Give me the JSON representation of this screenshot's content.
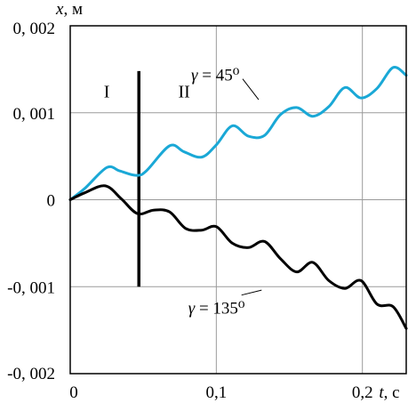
{
  "chart_data": {
    "type": "line",
    "title": "",
    "xlabel": "t, с",
    "ylabel": "x, м",
    "xlim": [
      0,
      0.23
    ],
    "ylim": [
      -0.002,
      0.002
    ],
    "grid": true,
    "x_ticks": [
      {
        "value": 0,
        "label": "0"
      },
      {
        "value": 0.1,
        "label": "0,1"
      },
      {
        "value": 0.2,
        "label": "0,2"
      }
    ],
    "y_ticks": [
      {
        "value": 0.002,
        "label": "0, 002"
      },
      {
        "value": 0.001,
        "label": "0, 001"
      },
      {
        "value": 0,
        "label": "0"
      },
      {
        "value": -0.001,
        "label": "-0, 001"
      },
      {
        "value": -0.002,
        "label": "-0, 002"
      }
    ],
    "divider": {
      "x": 0.047,
      "y_from": -0.001,
      "y_to": 0.00148
    },
    "regions": [
      {
        "label": "I",
        "x": 0.025,
        "y": 0.00125
      },
      {
        "label": "II",
        "x": 0.078,
        "y": 0.00125
      }
    ],
    "series": [
      {
        "name": "γ = 45⁰",
        "color": "#1aa8d6",
        "x": [
          0,
          0.01,
          0.025,
          0.034,
          0.045,
          0.052,
          0.068,
          0.078,
          0.09,
          0.1,
          0.111,
          0.122,
          0.133,
          0.144,
          0.155,
          0.166,
          0.177,
          0.188,
          0.199,
          0.21,
          0.221,
          0.23
        ],
        "y": [
          0,
          0.00013,
          0.00037,
          0.00033,
          0.00028,
          0.00033,
          0.00062,
          0.00055,
          0.00049,
          0.00063,
          0.00085,
          0.00073,
          0.00074,
          0.00098,
          0.00106,
          0.00096,
          0.00107,
          0.00129,
          0.00117,
          0.00128,
          0.00152,
          0.00143
        ]
      },
      {
        "name": "γ = 135⁰",
        "color": "#000000",
        "x": [
          0,
          0.01,
          0.024,
          0.035,
          0.046,
          0.057,
          0.068,
          0.079,
          0.09,
          0.1,
          0.111,
          0.122,
          0.133,
          0.144,
          0.155,
          0.166,
          0.177,
          0.188,
          0.199,
          0.21,
          0.221,
          0.23
        ],
        "y": [
          0,
          8e-05,
          0.00016,
          1e-05,
          -0.00016,
          -0.00012,
          -0.00014,
          -0.00033,
          -0.00035,
          -0.00031,
          -0.0005,
          -0.00055,
          -0.00048,
          -0.00068,
          -0.00083,
          -0.00072,
          -0.00093,
          -0.00102,
          -0.00093,
          -0.0012,
          -0.00123,
          -0.00148
        ]
      }
    ],
    "annotations": [
      {
        "label": "γ = 45⁰",
        "series": 0,
        "text_x": 0.101,
        "text_y": 0.00143,
        "point_x": 0.129,
        "point_y": 0.00115
      },
      {
        "label": "γ = 135⁰",
        "series": 1,
        "text_x": 0.099,
        "text_y": -0.00125,
        "point_x": 0.131,
        "point_y": -0.00104
      }
    ]
  }
}
